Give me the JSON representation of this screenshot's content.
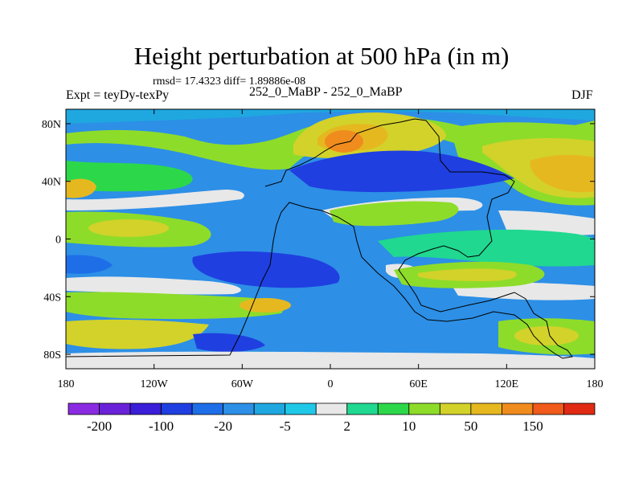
{
  "title": "Height perturbation at 500 hPa (in m)",
  "stats_line": "rmsd= 17.4323 diff= 1.89886e-08",
  "left_label": "Expt = teyDy-texPy",
  "center_label": "252_0_MaBP - 252_0_MaBP",
  "right_label": "DJF",
  "axes": {
    "y_ticks": [
      {
        "value": 80,
        "label": "80N"
      },
      {
        "value": 40,
        "label": "40N"
      },
      {
        "value": 0,
        "label": "0"
      },
      {
        "value": -40,
        "label": "40S"
      },
      {
        "value": -80,
        "label": "80S"
      }
    ],
    "x_ticks": [
      {
        "value": -180,
        "label": "180"
      },
      {
        "value": -120,
        "label": "120W"
      },
      {
        "value": -60,
        "label": "60W"
      },
      {
        "value": 0,
        "label": "0"
      },
      {
        "value": 60,
        "label": "60E"
      },
      {
        "value": 120,
        "label": "120E"
      },
      {
        "value": 180,
        "label": "180"
      }
    ]
  },
  "colorbar": {
    "colors": [
      "#8a2be2",
      "#6a22d8",
      "#3a1ed8",
      "#1f3fe0",
      "#1e6ee8",
      "#2d8fe6",
      "#1fa7e0",
      "#20c8e8",
      "#e8e8e8",
      "#20d890",
      "#2cd84a",
      "#8edc2a",
      "#d2d22a",
      "#e6b820",
      "#f08c1e",
      "#f05a1a",
      "#e02a14"
    ],
    "labels": [
      "-200",
      "-100",
      "-20",
      "-5",
      "2",
      "10",
      "50",
      "150"
    ]
  },
  "colors": {
    "ocean_neutral": "#e8e8e8",
    "deep_blue": "#1f3fe0",
    "mid_blue": "#1e6ee8",
    "light_blue": "#2d8fe6",
    "cyan": "#1fa7e0",
    "green": "#2cd84a",
    "yellow_green": "#8edc2a",
    "yellow": "#d2d22a",
    "orange_yellow": "#e6b820",
    "orange": "#f08c1e"
  }
}
